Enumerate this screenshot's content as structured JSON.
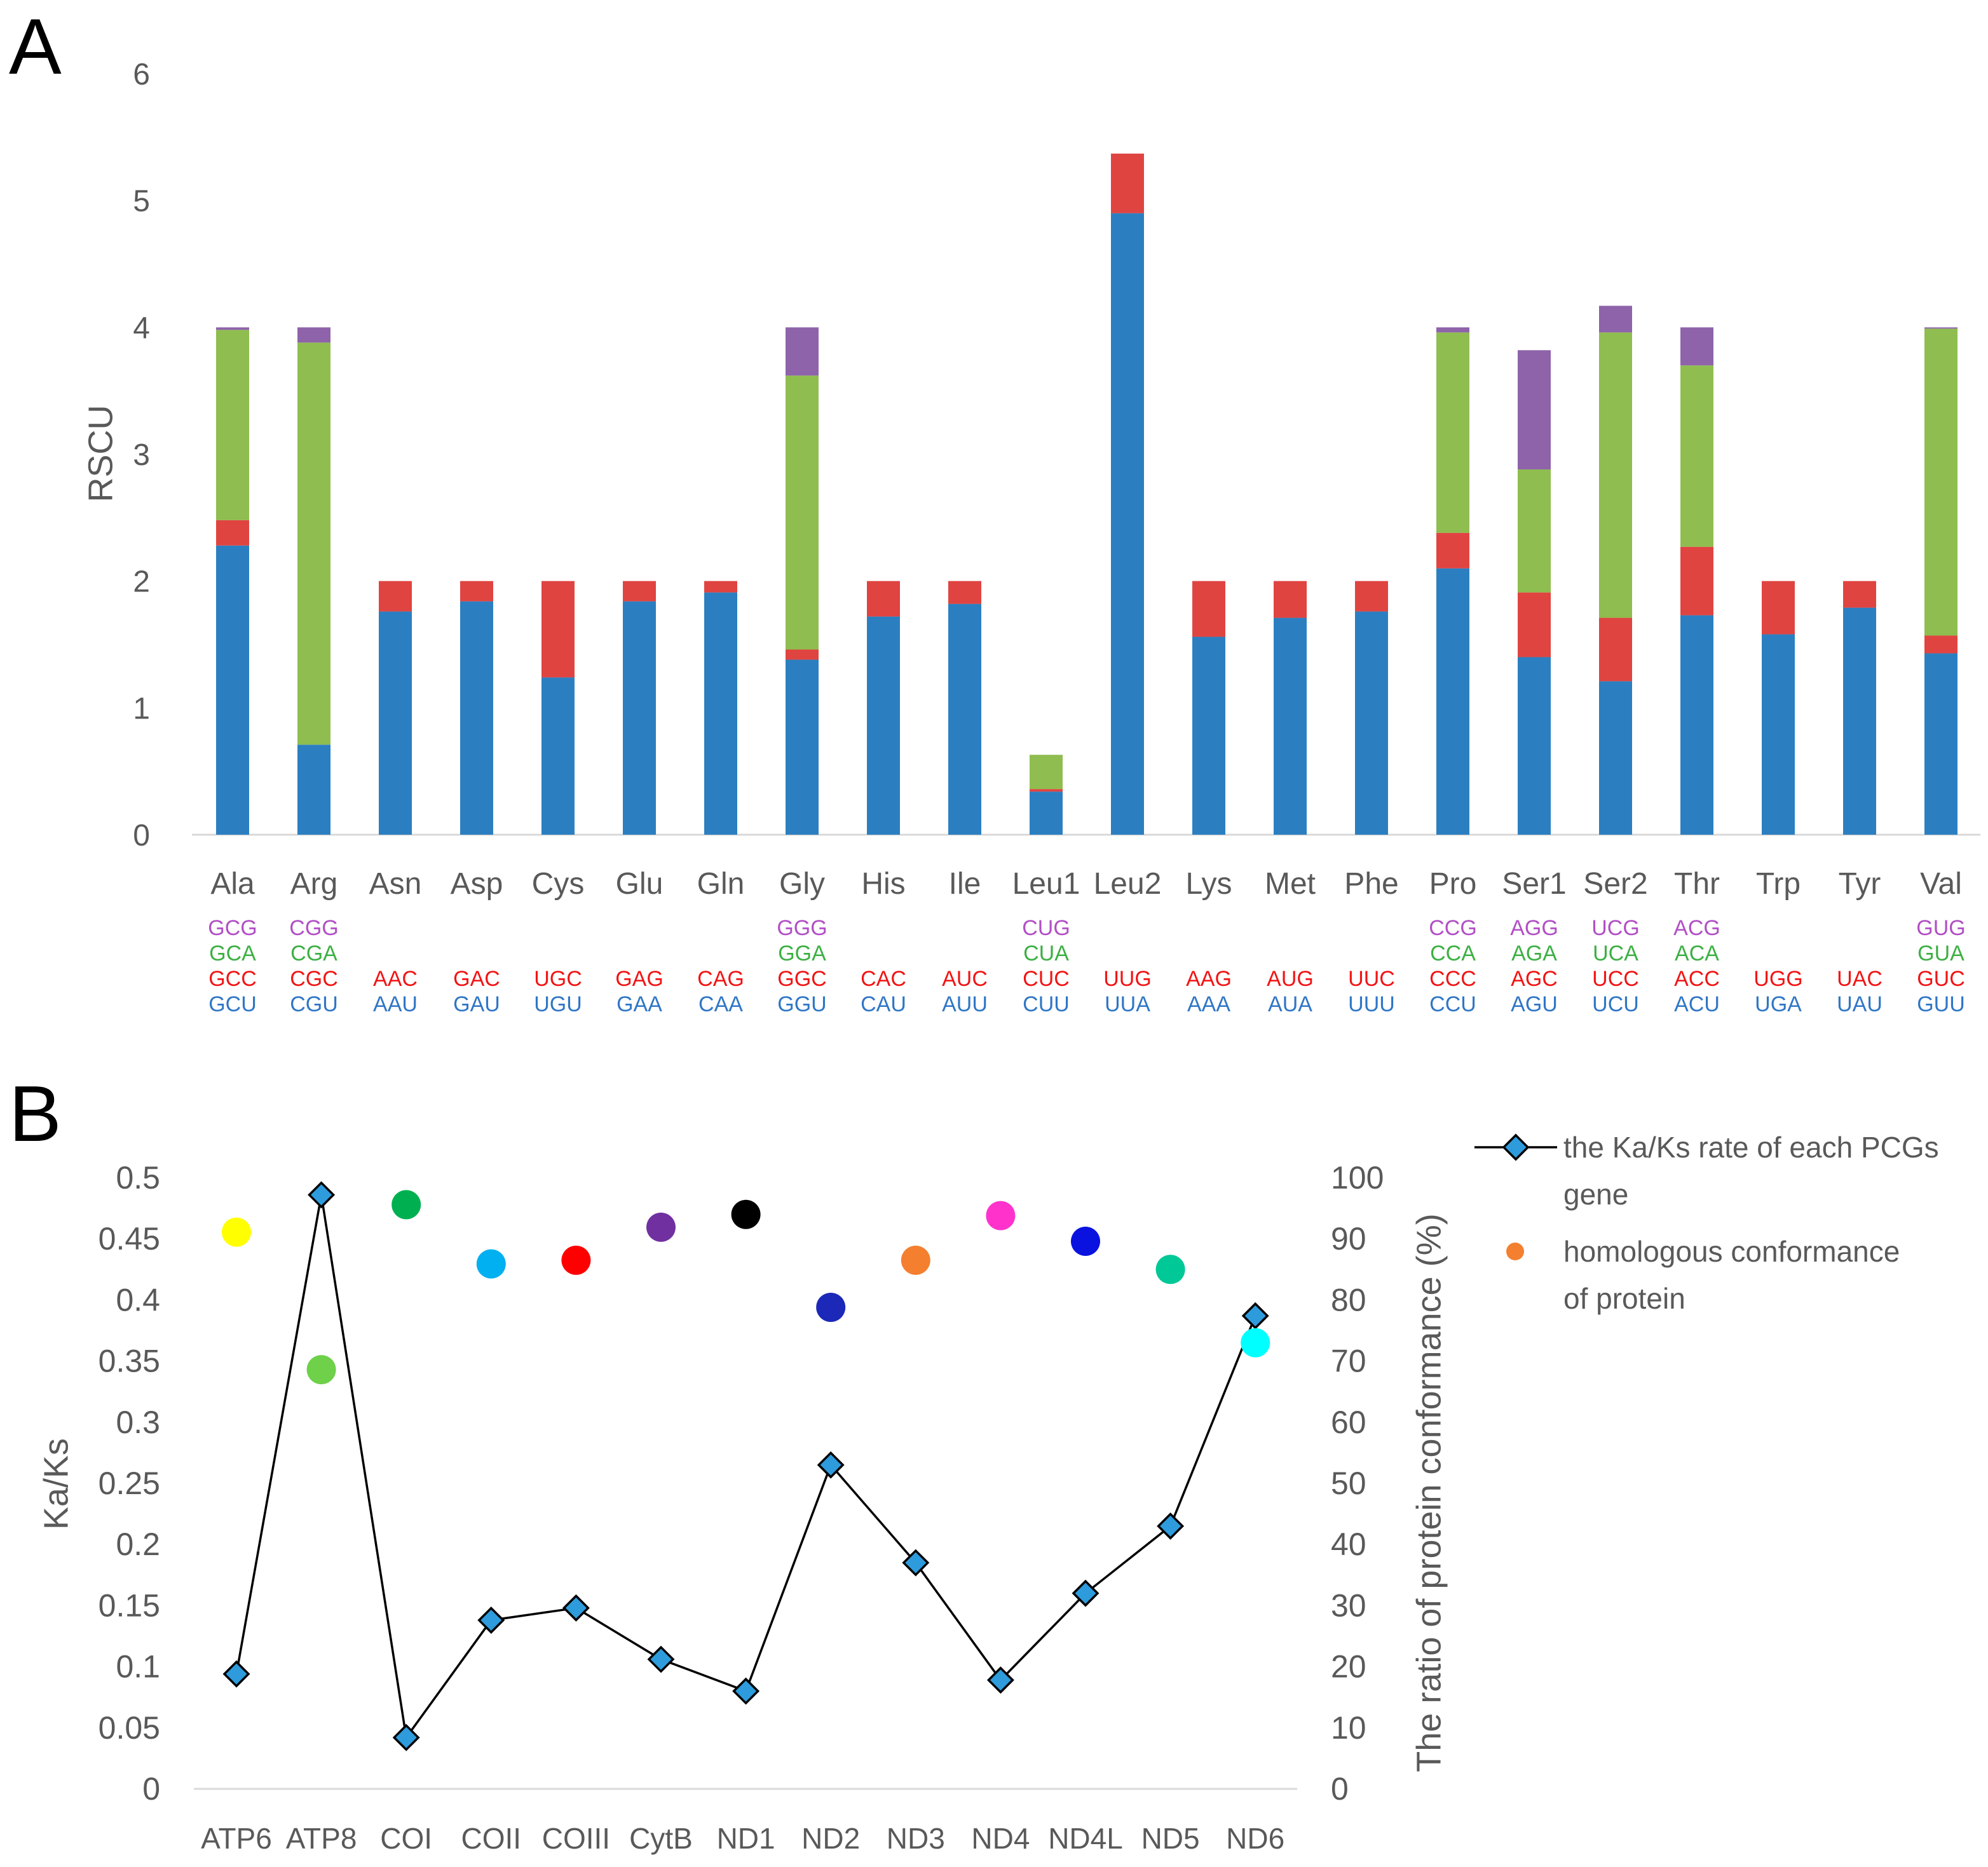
{
  "chart_data": [
    {
      "panel": "A",
      "type": "bar",
      "stacked": true,
      "grid": false,
      "ylabel": "RSCU",
      "ylim": [
        0,
        6
      ],
      "yticks": [
        0,
        1,
        2,
        3,
        4,
        5,
        6
      ],
      "categories": [
        "Ala",
        "Arg",
        "Asn",
        "Asp",
        "Cys",
        "Glu",
        "Gln",
        "Gly",
        "His",
        "Ile",
        "Leu1",
        "Leu2",
        "Lys",
        "Met",
        "Phe",
        "Pro",
        "Ser1",
        "Ser2",
        "Thr",
        "Trp",
        "Tyr",
        "Val"
      ],
      "series": [
        {
          "color": "#2b7fc1",
          "label_color": "#2f76c6",
          "codons": [
            "GCU",
            "CGU",
            "AAU",
            "GAU",
            "UGU",
            "GAA",
            "CAA",
            "GGU",
            "CAU",
            "AUU",
            "CUU",
            "UUA",
            "AAA",
            "AUA",
            "UUU",
            "CCU",
            "AGU",
            "UCU",
            "ACU",
            "UGA",
            "UAU",
            "GUU"
          ],
          "values": [
            2.28,
            0.71,
            1.76,
            1.84,
            1.24,
            1.84,
            1.91,
            1.38,
            1.72,
            1.82,
            0.34,
            4.9,
            1.56,
            1.71,
            1.76,
            2.1,
            1.4,
            1.21,
            1.73,
            1.58,
            1.79,
            1.43
          ]
        },
        {
          "color": "#e04441",
          "label_color": "#f21414",
          "codons": [
            "GCC",
            "CGC",
            "AAC",
            "GAC",
            "UGC",
            "GAG",
            "CAG",
            "GGC",
            "CAC",
            "AUC",
            "CUC",
            "UUG",
            "AAG",
            "AUG",
            "UUC",
            "CCC",
            "AGC",
            "UCC",
            "ACC",
            "UGG",
            "UAC",
            "GUC"
          ],
          "values": [
            0.2,
            0.0,
            0.24,
            0.16,
            0.76,
            0.16,
            0.09,
            0.08,
            0.28,
            0.18,
            0.02,
            0.47,
            0.44,
            0.29,
            0.24,
            0.28,
            0.51,
            0.5,
            0.54,
            0.42,
            0.21,
            0.14
          ]
        },
        {
          "color": "#8fbd4f",
          "label_color": "#3cb043",
          "codons": [
            "GCA",
            "CGA",
            null,
            null,
            null,
            null,
            null,
            "GGA",
            null,
            null,
            "CUA",
            null,
            null,
            null,
            null,
            "CCA",
            "AGA",
            "UCA",
            "ACA",
            null,
            null,
            "GUA"
          ],
          "values": [
            1.5,
            3.17,
            null,
            null,
            null,
            null,
            null,
            2.16,
            null,
            null,
            0.27,
            null,
            null,
            null,
            null,
            1.58,
            0.97,
            2.25,
            1.43,
            null,
            null,
            2.42
          ]
        },
        {
          "color": "#8e63aa",
          "label_color": "#b14fc5",
          "codons": [
            "GCG",
            "CGG",
            null,
            null,
            null,
            null,
            null,
            "GGG",
            null,
            null,
            "CUG",
            null,
            null,
            null,
            null,
            "CCG",
            "AGG",
            "UCG",
            "ACG",
            null,
            null,
            "GUG"
          ],
          "values": [
            0.02,
            0.12,
            null,
            null,
            null,
            null,
            null,
            0.38,
            null,
            null,
            0.0,
            null,
            null,
            null,
            null,
            0.04,
            0.94,
            0.21,
            0.3,
            null,
            null,
            0.01
          ]
        }
      ]
    },
    {
      "panel": "B",
      "type": "line",
      "grid": false,
      "legend_position": "right",
      "categories": [
        "ATP6",
        "ATP8",
        "COI",
        "COII",
        "COIII",
        "CytB",
        "ND1",
        "ND2",
        "ND3",
        "ND4",
        "ND4L",
        "ND5",
        "ND6"
      ],
      "y_left": {
        "label": "Ka/Ks",
        "lim": [
          0,
          0.5
        ],
        "ticks": [
          0,
          0.05,
          0.1,
          0.15,
          0.2,
          0.25,
          0.3,
          0.35,
          0.4,
          0.45,
          0.5
        ]
      },
      "y_right": {
        "label": "The ratio of protein conformance (%)",
        "lim": [
          0,
          100
        ],
        "ticks": [
          0,
          10,
          20,
          30,
          40,
          50,
          60,
          70,
          80,
          90,
          100
        ]
      },
      "series": [
        {
          "name": "the Ka/Ks rate of each PCGs gene",
          "marker": "diamond",
          "line_color": "#000000",
          "marker_color": "#2e9bdc",
          "values": [
            0.094,
            0.486,
            0.042,
            0.138,
            0.148,
            0.106,
            0.08,
            0.265,
            0.185,
            0.089,
            0.16,
            0.215,
            0.387
          ]
        },
        {
          "name": "homologous conformance of protein",
          "marker": "circle",
          "legend_color": "#f47f2f",
          "point_colors": [
            "#ffff00",
            "#6fd04a",
            "#00b050",
            "#00b0f0",
            "#ff0000",
            "#7030a0",
            "#000000",
            "#1c28b8",
            "#f47f2f",
            "#ff33cc",
            "#0a12e0",
            "#00c896",
            "#00ffff"
          ],
          "values": [
            91.1,
            68.6,
            95.6,
            85.9,
            86.5,
            91.9,
            94.0,
            78.8,
            86.5,
            93.8,
            89.6,
            85.0,
            73.0
          ]
        }
      ]
    }
  ]
}
